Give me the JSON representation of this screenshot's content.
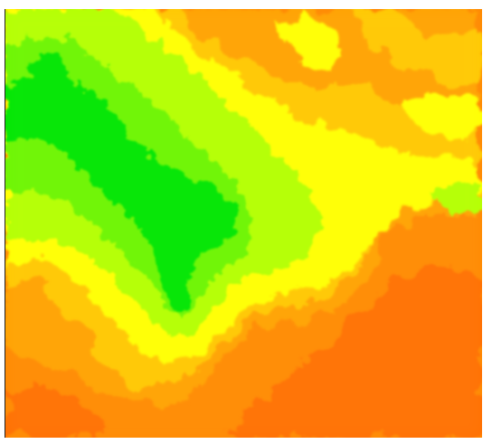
{
  "map": {
    "type": "elevation-raster",
    "colormap": [
      "#00e600",
      "#7fff00",
      "#ffff00",
      "#ffb000",
      "#ff7a00",
      "#ff6400"
    ],
    "background": "#ffffff"
  }
}
